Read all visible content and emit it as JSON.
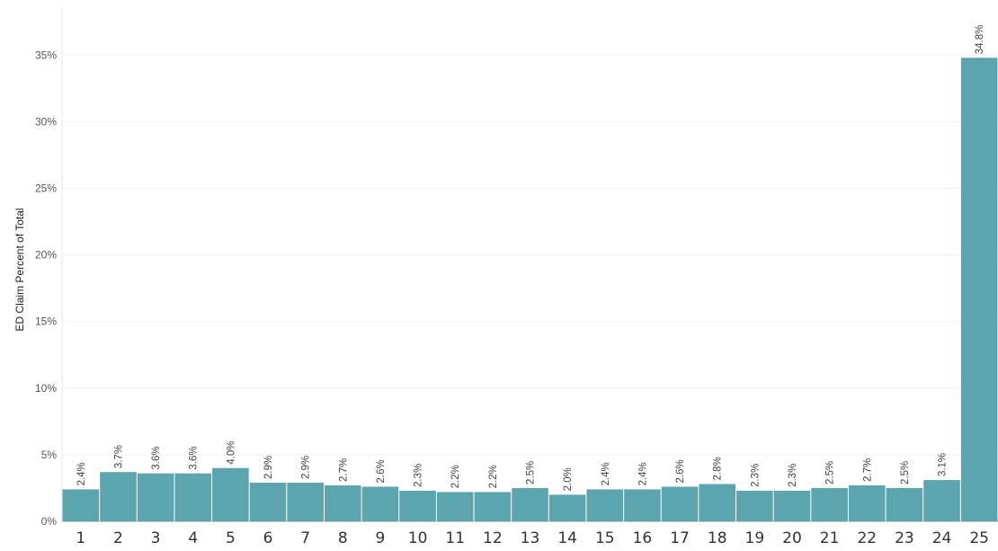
{
  "chart_data": {
    "type": "bar",
    "title": "",
    "xlabel": "",
    "ylabel": "ED Claim Percent of Total",
    "ylim": [
      0,
      0.37
    ],
    "yticks": [
      0,
      0.05,
      0.1,
      0.15,
      0.2,
      0.25,
      0.3,
      0.35
    ],
    "ytick_labels": [
      "0%",
      "5%",
      "10%",
      "15%",
      "20%",
      "25%",
      "30%",
      "35%"
    ],
    "grid": true,
    "bar_color": "#5da5ae",
    "categories": [
      "1",
      "2",
      "3",
      "4",
      "5",
      "6",
      "7",
      "8",
      "9",
      "10",
      "11",
      "12",
      "13",
      "14",
      "15",
      "16",
      "17",
      "18",
      "19",
      "20",
      "21",
      "22",
      "23",
      "24",
      "25"
    ],
    "values": [
      0.024,
      0.037,
      0.036,
      0.036,
      0.04,
      0.029,
      0.029,
      0.027,
      0.026,
      0.023,
      0.022,
      0.022,
      0.025,
      0.02,
      0.024,
      0.024,
      0.026,
      0.028,
      0.023,
      0.023,
      0.025,
      0.027,
      0.025,
      0.031,
      0.348
    ],
    "labels": [
      "2.4%",
      "3.7%",
      "3.6%",
      "3.6%",
      "4.0%",
      "2.9%",
      "2.9%",
      "2.7%",
      "2.6%",
      "2.3%",
      "2.2%",
      "2.2%",
      "2.5%",
      "2.0%",
      "2.4%",
      "2.4%",
      "2.6%",
      "2.8%",
      "2.3%",
      "2.3%",
      "2.5%",
      "2.7%",
      "2.5%",
      "3.1%",
      "34.8%"
    ]
  }
}
